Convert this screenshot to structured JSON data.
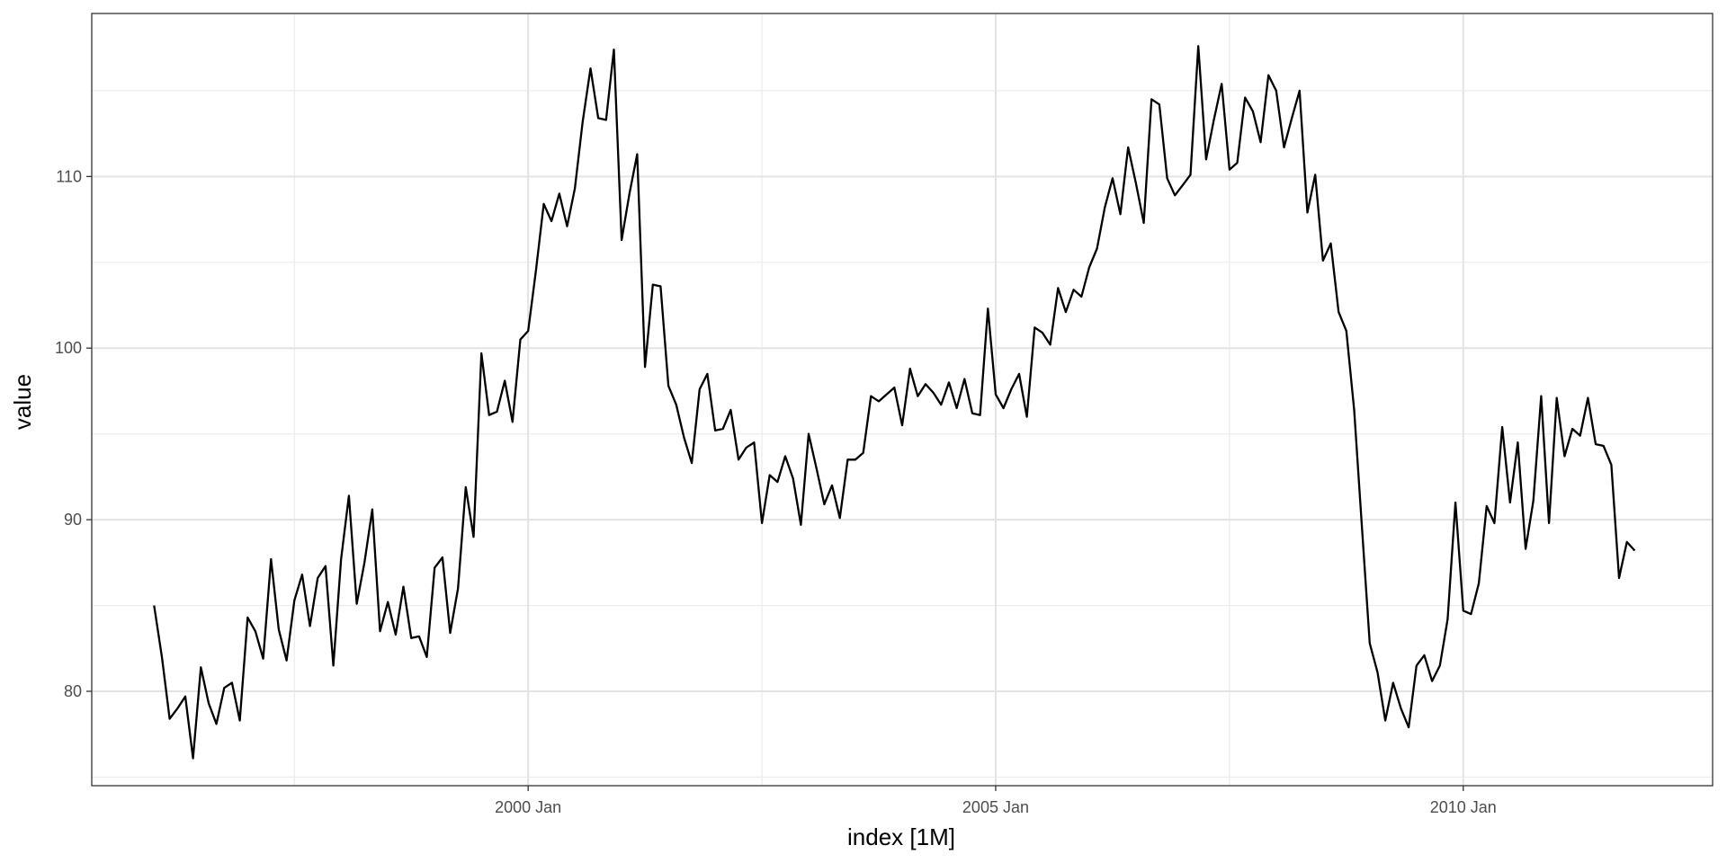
{
  "chart_data": {
    "type": "line",
    "xlabel": "index [1M]",
    "ylabel": "value",
    "x_start": "1996-01",
    "x_end": "2011-12",
    "x_unit": "month",
    "xlim": [
      "1995-05",
      "2012-09"
    ],
    "ylim": [
      74.5,
      119.5
    ],
    "x_ticks": [
      {
        "date": "2000-01",
        "label": "2000 Jan"
      },
      {
        "date": "2005-01",
        "label": "2005 Jan"
      },
      {
        "date": "2010-01",
        "label": "2010 Jan"
      }
    ],
    "x_minor_ticks": [
      "1997-07",
      "2002-07",
      "2007-07"
    ],
    "y_ticks": [
      80,
      90,
      100,
      110
    ],
    "y_minor_ticks": [
      75,
      85,
      95,
      105,
      115
    ],
    "grid": true,
    "line_color": "#000000",
    "series": [
      {
        "values": [
          85.0,
          82.0,
          78.4,
          79.0,
          79.7,
          76.1,
          81.4,
          79.3,
          78.1,
          80.2,
          80.5,
          78.3,
          84.3,
          83.5,
          81.9,
          87.7,
          83.6,
          81.8,
          85.3,
          86.8,
          83.8,
          86.6,
          87.3,
          81.5,
          87.7,
          91.4,
          85.1,
          87.5,
          90.6,
          83.5,
          85.2,
          83.3,
          86.1,
          83.1,
          83.2,
          82.0,
          87.2,
          87.8,
          83.4,
          86.0,
          91.9,
          89.0,
          99.7,
          96.1,
          96.3,
          98.1,
          95.7,
          100.5,
          101.0,
          104.5,
          108.4,
          107.4,
          109.0,
          107.1,
          109.3,
          113.2,
          116.3,
          113.4,
          113.3,
          117.4,
          106.3,
          109.0,
          111.3,
          98.9,
          103.7,
          103.6,
          97.8,
          96.7,
          94.8,
          93.3,
          97.6,
          98.5,
          95.2,
          95.3,
          96.4,
          93.5,
          94.2,
          94.5,
          89.8,
          92.6,
          92.2,
          93.7,
          92.4,
          89.7,
          95.0,
          93.0,
          90.9,
          92.0,
          90.1,
          93.5,
          93.5,
          93.9,
          97.2,
          96.9,
          97.3,
          97.7,
          95.5,
          98.8,
          97.2,
          97.9,
          97.4,
          96.7,
          98.0,
          96.5,
          98.2,
          96.2,
          96.1,
          102.3,
          97.3,
          96.5,
          97.6,
          98.5,
          96.0,
          101.2,
          100.9,
          100.2,
          103.5,
          102.1,
          103.4,
          103.0,
          104.7,
          105.8,
          108.2,
          109.9,
          107.8,
          111.7,
          109.6,
          107.3,
          114.5,
          114.2,
          109.9,
          108.9,
          109.5,
          110.1,
          117.6,
          111.0,
          113.3,
          115.4,
          110.4,
          110.8,
          114.6,
          113.8,
          112.0,
          115.9,
          115.0,
          111.7,
          113.4,
          115.0,
          107.9,
          110.1,
          105.1,
          106.1,
          102.1,
          101.0,
          96.4,
          89.6,
          82.8,
          81.1,
          78.3,
          80.5,
          79.0,
          77.9,
          81.5,
          82.1,
          80.6,
          81.5,
          84.2,
          91.0,
          84.7,
          84.5,
          86.3,
          90.8,
          89.8,
          95.4,
          91.0,
          94.5,
          88.3,
          91.1,
          97.2,
          89.8,
          97.1,
          93.7,
          95.3,
          94.9,
          97.1,
          94.4,
          94.3,
          93.2,
          86.6,
          88.7,
          88.2
        ]
      }
    ]
  }
}
